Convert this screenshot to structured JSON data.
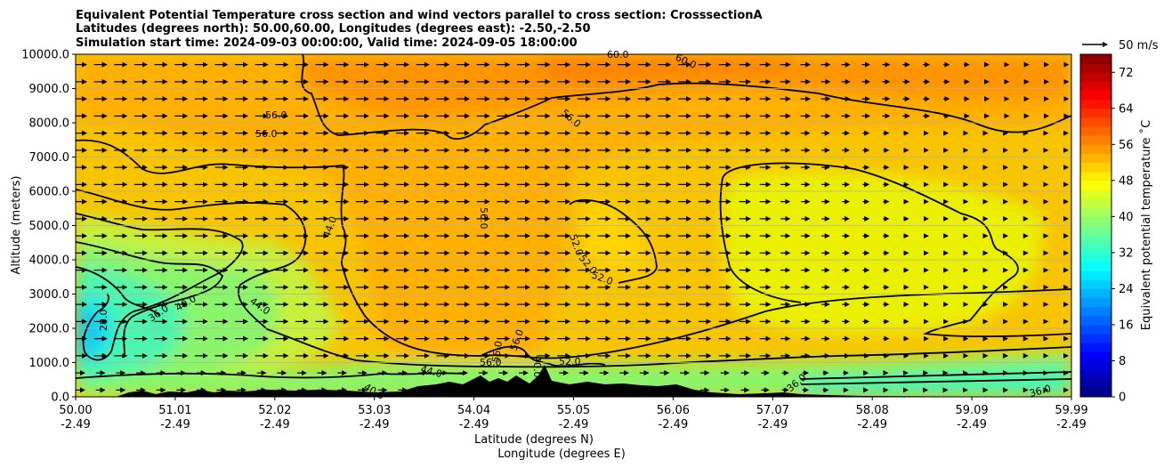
{
  "chart_data": {
    "type": "contour",
    "title_lines": [
      "Equivalent Potential Temperature cross section and wind vectors parallel to cross section: CrosssectionA",
      "Latitudes (degrees north): 50.00,60.00, Longitudes (degrees east): -2.50,-2.50",
      "Simulation start time: 2024-09-03 00:00:00, Valid time: 2024-09-05 18:00:00"
    ],
    "xlabel": "Latitude (degrees N)",
    "xlabel2": "Longitude (degrees E)",
    "ylabel": "Altitude (meters)",
    "x_ticks": [
      {
        "lat": "50.00",
        "lon": "-2.49"
      },
      {
        "lat": "51.01",
        "lon": "-2.49"
      },
      {
        "lat": "52.02",
        "lon": "-2.49"
      },
      {
        "lat": "53.03",
        "lon": "-2.49"
      },
      {
        "lat": "54.04",
        "lon": "-2.49"
      },
      {
        "lat": "55.05",
        "lon": "-2.49"
      },
      {
        "lat": "56.06",
        "lon": "-2.49"
      },
      {
        "lat": "57.07",
        "lon": "-2.49"
      },
      {
        "lat": "58.08",
        "lon": "-2.49"
      },
      {
        "lat": "59.09",
        "lon": "-2.49"
      },
      {
        "lat": "59.99",
        "lon": "-2.49"
      }
    ],
    "xlim": [
      50.0,
      59.99
    ],
    "y_ticks": [
      "0.0",
      "1000.0",
      "2000.0",
      "3000.0",
      "4000.0",
      "5000.0",
      "6000.0",
      "7000.0",
      "8000.0",
      "9000.0",
      "10000.0"
    ],
    "ylim": [
      0,
      10000
    ],
    "grid": "horizontal",
    "colorbar": {
      "label": "Equivalent potential temperature ˚C",
      "ticks": [
        "0",
        "8",
        "16",
        "24",
        "32",
        "40",
        "48",
        "56",
        "64",
        "72"
      ],
      "range": [
        0,
        76
      ],
      "colormap": "jet"
    },
    "quiver_key": "50 m/s",
    "contour_labels": [
      "60.0",
      "60.0",
      "56.0",
      "56.0",
      "56.0",
      "56.0",
      "52.0",
      "52.0",
      "52.0",
      "52.0",
      "44.0",
      "44.0",
      "44.0",
      "40.0",
      "40.0",
      "36.0",
      "36.0",
      "28.0",
      "56.0",
      "56.0",
      "56.0",
      "36.0",
      "40.0"
    ],
    "colors": {
      "low_level": "#7df57d",
      "mid_level": "#ffe000",
      "upper_level": "#ffa500",
      "terrain": "#000000"
    }
  }
}
